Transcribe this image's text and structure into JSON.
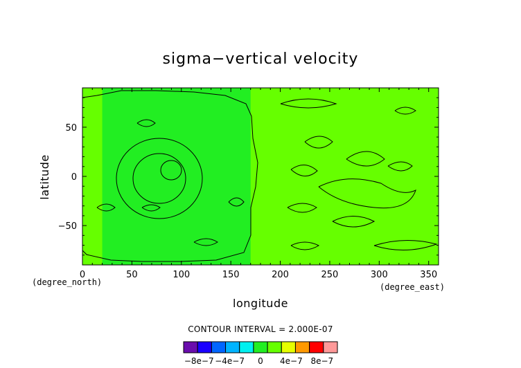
{
  "chart_data": {
    "type": "heatmap",
    "title": "sigma−vertical velocity",
    "xlabel": "longitude",
    "ylabel": "latitude",
    "x_unit": "(degree_east)",
    "y_unit": "(degree_north)",
    "xlim": [
      0,
      360
    ],
    "ylim": [
      -90,
      90
    ],
    "x_ticks": [
      "0",
      "50",
      "100",
      "150",
      "200",
      "250",
      "300",
      "350"
    ],
    "x_tick_values": [
      0,
      50,
      100,
      150,
      200,
      250,
      300,
      350
    ],
    "y_ticks": [
      "50",
      "0",
      "−50"
    ],
    "y_tick_values": [
      50,
      0,
      -50
    ],
    "contour_interval_text": "CONTOUR INTERVAL = 2.000E-07",
    "colorbar": {
      "levels": [
        -1e-06,
        -8e-07,
        -6e-07,
        -4e-07,
        -2e-07,
        0,
        2e-07,
        4e-07,
        6e-07,
        8e-07,
        1e-06
      ],
      "colors": [
        "#6a0dad",
        "#1a00ff",
        "#0066ff",
        "#00b4ff",
        "#00f0f0",
        "#22ee22",
        "#66ff00",
        "#e6ff00",
        "#ff9900",
        "#ff0000",
        "#ff9999"
      ],
      "tick_labels": [
        "−8e−7",
        "−4e−7",
        "0",
        "4e−7",
        "8e−7"
      ],
      "tick_values": [
        -8e-07,
        -4e-07,
        0,
        4e-07,
        8e-07
      ]
    },
    "field": {
      "background_color": "#22ee22",
      "positive_region_color": "#66ff00",
      "positive_regions_lon": [
        [
          0,
          20
        ],
        [
          170,
          360
        ]
      ]
    }
  }
}
